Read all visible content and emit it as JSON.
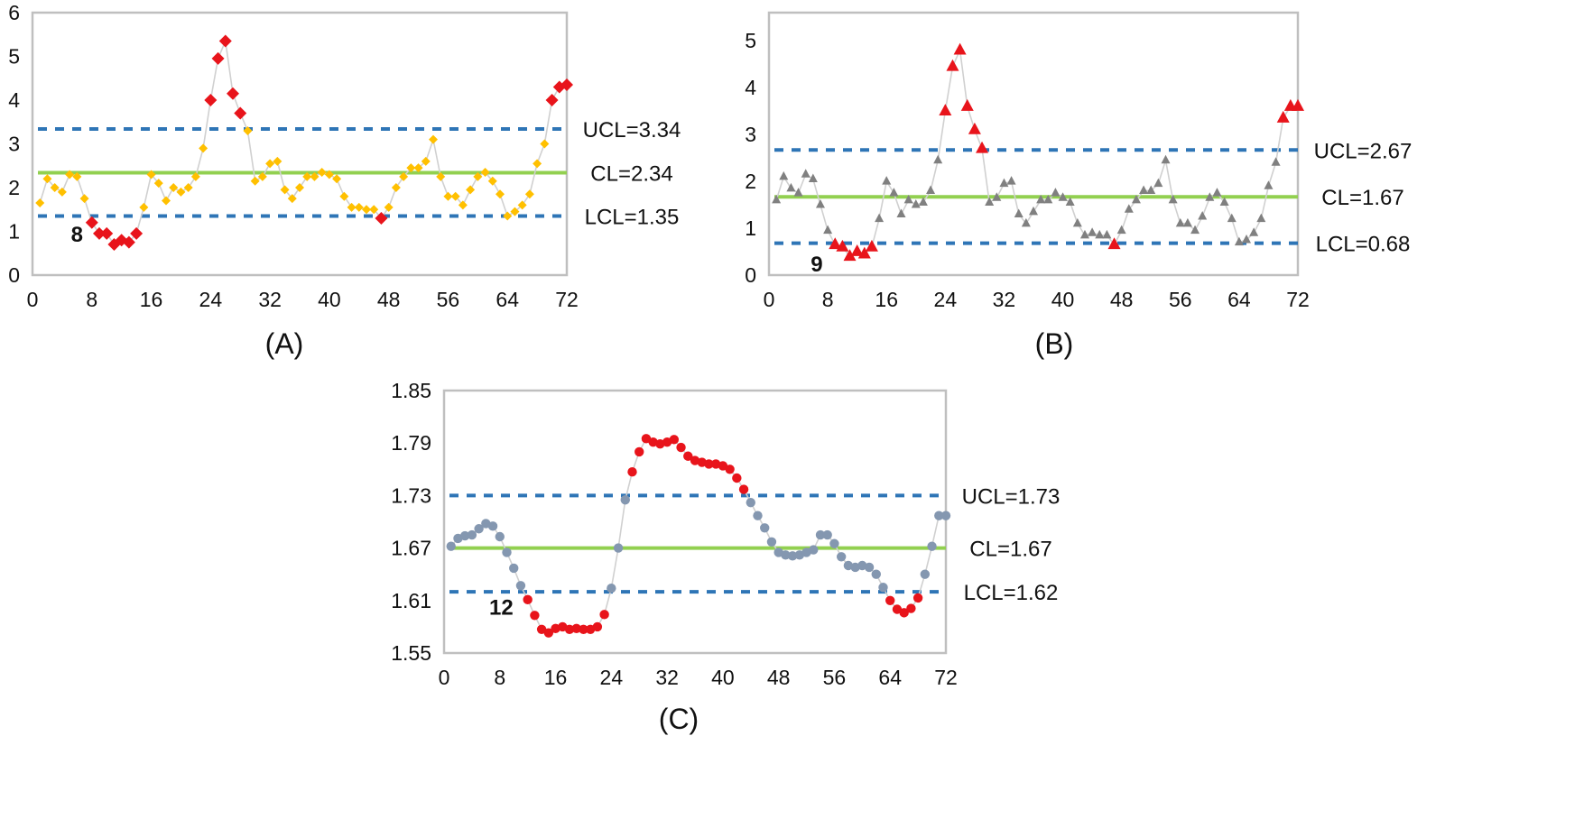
{
  "colors": {
    "ucl_lcl": "#2E75B6",
    "cl": "#92D050",
    "connector": "#D0D0D0",
    "out_of_control": "#E8141B",
    "frame": "#BFBFBF"
  },
  "chart_data": [
    {
      "type": "scatter",
      "caption": "(A)",
      "marker": "diamond",
      "marker_color": "#FFC000",
      "x_ticks": [
        0,
        8,
        16,
        24,
        32,
        40,
        48,
        56,
        64,
        72
      ],
      "y_ticks": [
        0,
        1,
        2,
        3,
        4,
        5,
        6
      ],
      "xlim": [
        0,
        72
      ],
      "ylim": [
        0,
        6
      ],
      "limits": {
        "UCL": 3.34,
        "CL": 2.34,
        "LCL": 1.35
      },
      "limit_labels": {
        "UCL": "UCL=3.34",
        "CL": "CL=2.34",
        "LCL": "LCL=1.35"
      },
      "run_label": {
        "text": "8",
        "x": 6,
        "y": 0.95
      },
      "values": [
        1.65,
        2.2,
        2.0,
        1.9,
        2.3,
        2.25,
        1.75,
        1.2,
        0.95,
        0.95,
        0.7,
        0.8,
        0.75,
        0.95,
        1.55,
        2.3,
        2.1,
        1.7,
        2.0,
        1.9,
        2.0,
        2.25,
        2.9,
        4.0,
        4.95,
        5.35,
        4.15,
        3.7,
        3.3,
        2.15,
        2.25,
        2.55,
        2.6,
        1.95,
        1.75,
        2.0,
        2.25,
        2.25,
        2.35,
        2.3,
        2.2,
        1.8,
        1.55,
        1.55,
        1.5,
        1.5,
        1.3,
        1.55,
        2.0,
        2.25,
        2.45,
        2.45,
        2.6,
        3.1,
        2.25,
        1.8,
        1.8,
        1.6,
        1.95,
        2.25,
        2.35,
        2.15,
        1.85,
        1.35,
        1.45,
        1.6,
        1.85,
        2.55,
        3.0,
        4.0,
        4.3,
        4.35
      ]
    },
    {
      "type": "scatter",
      "caption": "(B)",
      "marker": "triangle",
      "marker_color": "#808080",
      "x_ticks": [
        0,
        8,
        16,
        24,
        32,
        40,
        48,
        56,
        64,
        72
      ],
      "y_ticks": [
        0,
        1,
        2,
        3,
        4,
        5
      ],
      "xlim": [
        0,
        72
      ],
      "ylim": [
        0,
        5.6
      ],
      "limits": {
        "UCL": 2.67,
        "CL": 1.67,
        "LCL": 0.68
      },
      "limit_labels": {
        "UCL": "UCL=2.67",
        "CL": "CL=1.67",
        "LCL": "LCL=0.68"
      },
      "run_label": {
        "text": "9",
        "x": 6.5,
        "y": 0.25
      },
      "values": [
        1.6,
        2.1,
        1.85,
        1.75,
        2.15,
        2.05,
        1.5,
        0.95,
        0.65,
        0.6,
        0.4,
        0.5,
        0.45,
        0.6,
        1.2,
        2.0,
        1.75,
        1.3,
        1.6,
        1.5,
        1.55,
        1.8,
        2.45,
        3.5,
        4.45,
        4.8,
        3.6,
        3.1,
        2.7,
        1.55,
        1.65,
        1.95,
        2.0,
        1.3,
        1.1,
        1.35,
        1.6,
        1.6,
        1.75,
        1.65,
        1.55,
        1.1,
        0.85,
        0.9,
        0.85,
        0.85,
        0.65,
        0.95,
        1.4,
        1.6,
        1.8,
        1.8,
        1.95,
        2.45,
        1.6,
        1.1,
        1.1,
        0.95,
        1.25,
        1.65,
        1.75,
        1.55,
        1.2,
        0.7,
        0.75,
        0.9,
        1.2,
        1.9,
        2.4,
        3.35,
        3.6,
        3.6
      ]
    },
    {
      "type": "scatter",
      "caption": "(C)",
      "marker": "circle",
      "marker_color": "#8497B0",
      "x_ticks": [
        0,
        8,
        16,
        24,
        32,
        40,
        48,
        56,
        64,
        72
      ],
      "y_ticks": [
        1.55,
        1.61,
        1.67,
        1.73,
        1.79,
        1.85
      ],
      "xlim": [
        0,
        72
      ],
      "ylim": [
        1.55,
        1.85
      ],
      "limits": {
        "UCL": 1.73,
        "CL": 1.67,
        "LCL": 1.62
      },
      "limit_labels": {
        "UCL": "UCL=1.73",
        "CL": "CL=1.67",
        "LCL": "LCL=1.62"
      },
      "run_label": {
        "text": "12",
        "x": 8.2,
        "y": 1.603
      },
      "values": [
        1.672,
        1.681,
        1.684,
        1.685,
        1.692,
        1.698,
        1.695,
        1.683,
        1.665,
        1.647,
        1.627,
        1.611,
        1.593,
        1.577,
        1.573,
        1.578,
        1.58,
        1.577,
        1.578,
        1.577,
        1.577,
        1.58,
        1.594,
        1.624,
        1.67,
        1.725,
        1.757,
        1.78,
        1.795,
        1.791,
        1.789,
        1.791,
        1.794,
        1.785,
        1.775,
        1.77,
        1.768,
        1.766,
        1.766,
        1.764,
        1.76,
        1.75,
        1.737,
        1.722,
        1.707,
        1.693,
        1.677,
        1.665,
        1.662,
        1.661,
        1.662,
        1.665,
        1.668,
        1.685,
        1.685,
        1.675,
        1.66,
        1.65,
        1.648,
        1.65,
        1.648,
        1.64,
        1.625,
        1.61,
        1.6,
        1.596,
        1.601,
        1.613,
        1.64,
        1.672,
        1.707,
        1.707
      ]
    }
  ]
}
